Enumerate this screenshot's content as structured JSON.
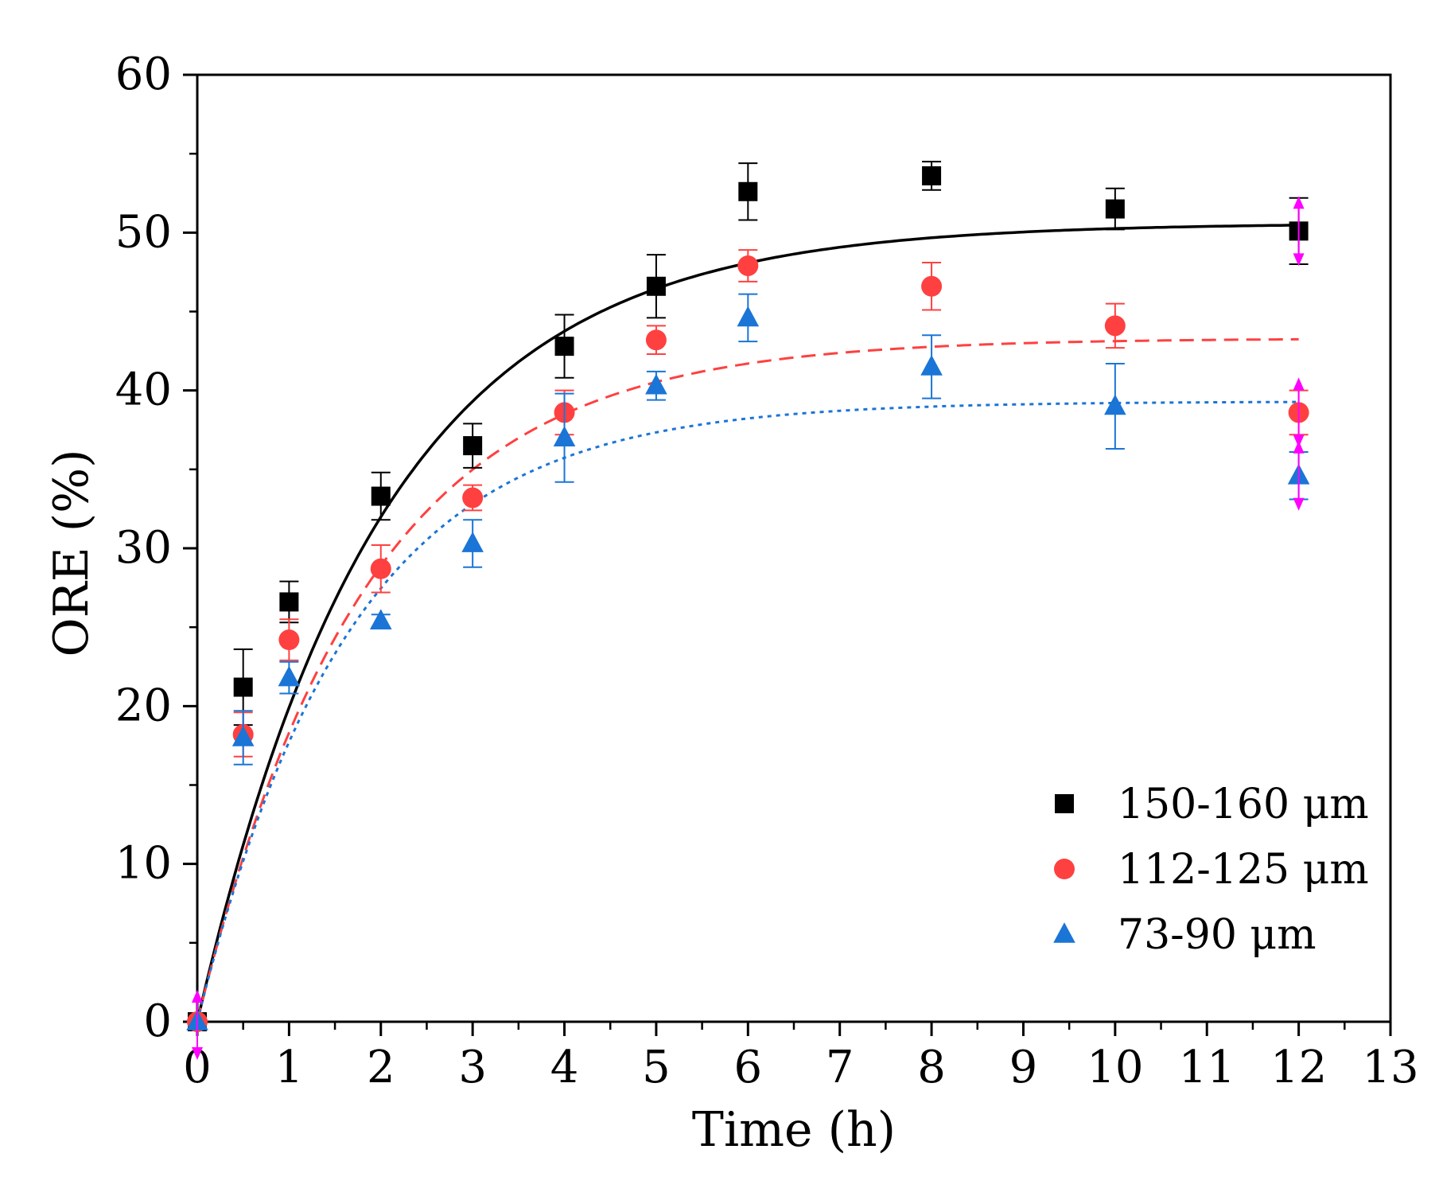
{
  "chart_data": {
    "type": "scatter",
    "title": "",
    "xlabel": "Time (h)",
    "ylabel": "ORE (%)",
    "xlim": [
      0,
      13
    ],
    "ylim": [
      0,
      60
    ],
    "xticks": [
      "0",
      "1",
      "2",
      "3",
      "4",
      "5",
      "6",
      "7",
      "8",
      "9",
      "10",
      "11",
      "12",
      "13"
    ],
    "yticks": [
      "0",
      "10",
      "20",
      "30",
      "40",
      "50",
      "60"
    ],
    "grid": false,
    "legend_position": "bottom-right",
    "series": [
      {
        "name": "150-160 μm",
        "marker": "square",
        "color": "#000000",
        "x": [
          0,
          0.5,
          1,
          2,
          3,
          4,
          5,
          6,
          8,
          10,
          12
        ],
        "y": [
          0,
          21.2,
          26.6,
          33.3,
          36.5,
          42.8,
          46.6,
          52.6,
          53.6,
          51.5,
          50.1
        ],
        "err": [
          0,
          2.4,
          1.3,
          1.5,
          1.4,
          2.0,
          2.0,
          1.8,
          0.9,
          1.3,
          2.1
        ],
        "fit": {
          "style": "solid",
          "qe": 50.6,
          "k": 0.5
        }
      },
      {
        "name": "112-125 μm",
        "marker": "circle",
        "color": "#ff4040",
        "x": [
          0,
          0.5,
          1,
          2,
          3,
          4,
          5,
          6,
          8,
          10,
          12
        ],
        "y": [
          0,
          18.2,
          24.2,
          28.7,
          33.2,
          38.6,
          43.2,
          47.9,
          46.6,
          44.1,
          38.6
        ],
        "err": [
          0,
          1.4,
          1.3,
          1.5,
          0.8,
          1.4,
          0.9,
          1.0,
          1.5,
          1.4,
          1.4
        ],
        "fit": {
          "style": "dashed",
          "qe": 43.3,
          "k": 0.55
        }
      },
      {
        "name": "73-90 μm",
        "marker": "triangle",
        "color": "#1a75d6",
        "x": [
          0,
          0.5,
          1,
          2,
          3,
          4,
          5,
          6,
          8,
          10,
          12
        ],
        "y": [
          0,
          18.0,
          21.8,
          25.4,
          30.3,
          37.0,
          40.3,
          44.6,
          41.5,
          39.0,
          34.6
        ],
        "err": [
          0,
          1.7,
          1.0,
          0.4,
          1.5,
          2.8,
          0.9,
          1.5,
          2.0,
          2.7,
          1.5
        ],
        "fit": {
          "style": "dotted",
          "qe": 39.3,
          "k": 0.6
        }
      }
    ]
  }
}
